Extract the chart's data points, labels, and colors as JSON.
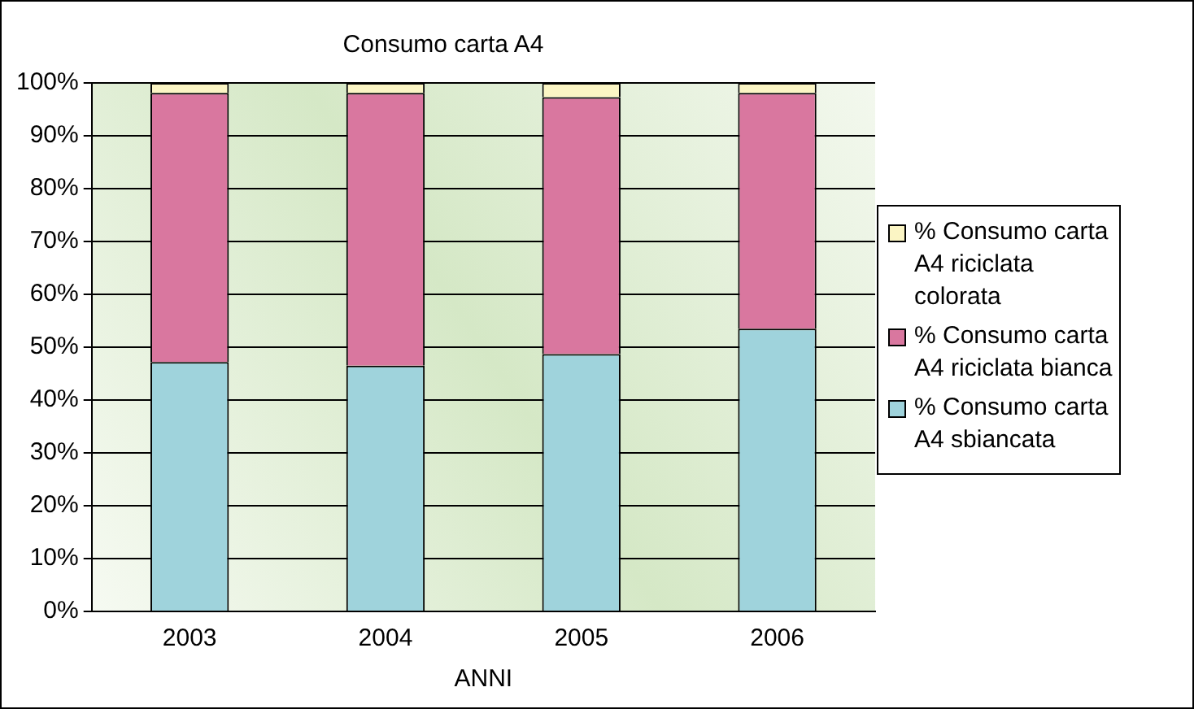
{
  "chart_data": {
    "type": "bar",
    "title": "Consumo carta A4",
    "xlabel": "ANNI",
    "categories": [
      "2003",
      "2004",
      "2005",
      "2006"
    ],
    "stacked": true,
    "series": [
      {
        "name": "% Consumo carta A4 sbiancata",
        "color": "#9fd3dc",
        "values": [
          47.2,
          46.5,
          48.7,
          53.5
        ]
      },
      {
        "name": "% Consumo carta A4 riciclata bianca",
        "color": "#d9779f",
        "values": [
          50.9,
          51.6,
          48.6,
          44.6
        ]
      },
      {
        "name": "% Consumo carta A4 riciclata colorata",
        "color": "#fbf5c4",
        "values": [
          1.9,
          1.9,
          2.7,
          1.9
        ]
      }
    ],
    "ylim": [
      0,
      100
    ],
    "yticks": [
      {
        "value": 0,
        "label": "0%"
      },
      {
        "value": 10,
        "label": "10%"
      },
      {
        "value": 20,
        "label": "20%"
      },
      {
        "value": 30,
        "label": "30%"
      },
      {
        "value": 40,
        "label": "40%"
      },
      {
        "value": 50,
        "label": "50%"
      },
      {
        "value": 60,
        "label": "60%"
      },
      {
        "value": 70,
        "label": "70%"
      },
      {
        "value": 80,
        "label": "80%"
      },
      {
        "value": 90,
        "label": "90%"
      },
      {
        "value": 100,
        "label": "100%"
      }
    ],
    "grid": "y",
    "legend": "right"
  }
}
